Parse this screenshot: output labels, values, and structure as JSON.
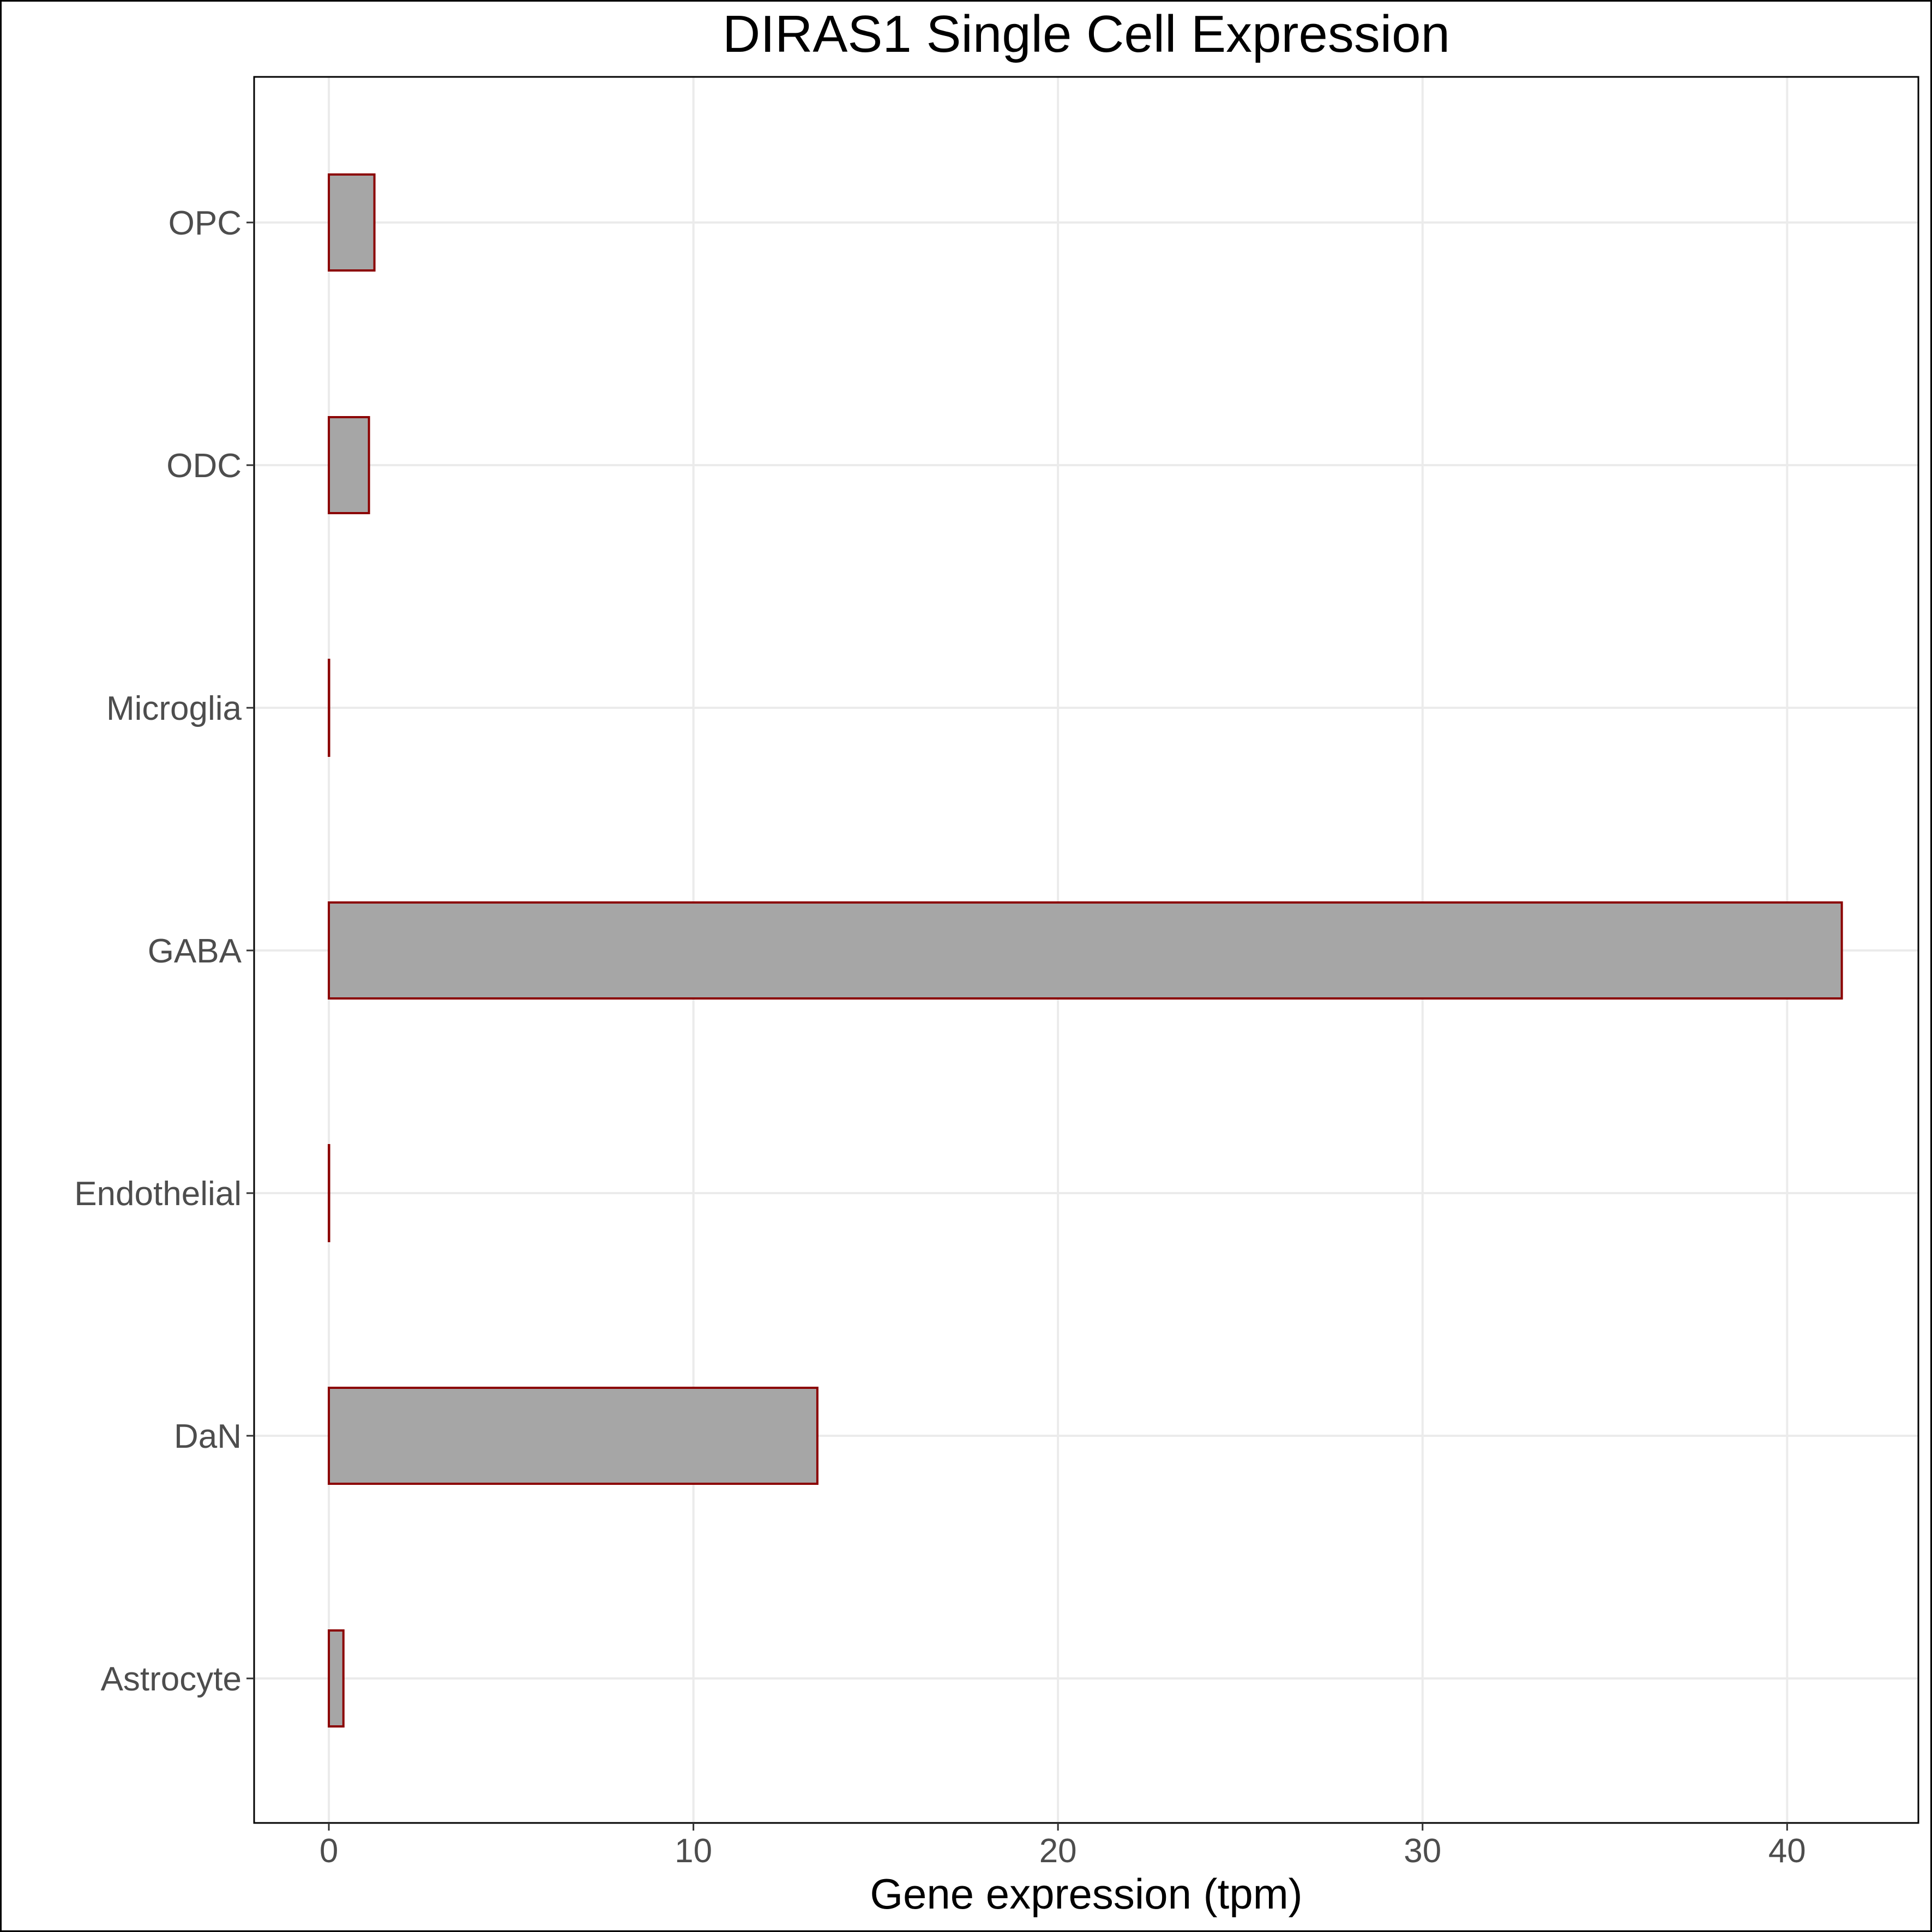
{
  "chart_data": {
    "type": "bar",
    "orientation": "horizontal",
    "title": "DIRAS1 Single Cell Expression",
    "xlabel": "Gene expression (tpm)",
    "ylabel": "",
    "categories": [
      "Astrocyte",
      "DaN",
      "Endothelial",
      "GABA",
      "Microglia",
      "ODC",
      "OPC"
    ],
    "values": [
      0.4,
      13.4,
      0.0,
      41.5,
      0.0,
      1.1,
      1.25
    ],
    "xlim": [
      -2.05,
      43.6
    ],
    "xticks": [
      "0",
      "10",
      "20",
      "30",
      "40"
    ],
    "grid": true,
    "legend": "none",
    "colors": {
      "bar_fill": "#a6a6a6",
      "bar_stroke": "#8b0000",
      "grid": "#ebebeb",
      "panel_border": "#000000"
    }
  }
}
